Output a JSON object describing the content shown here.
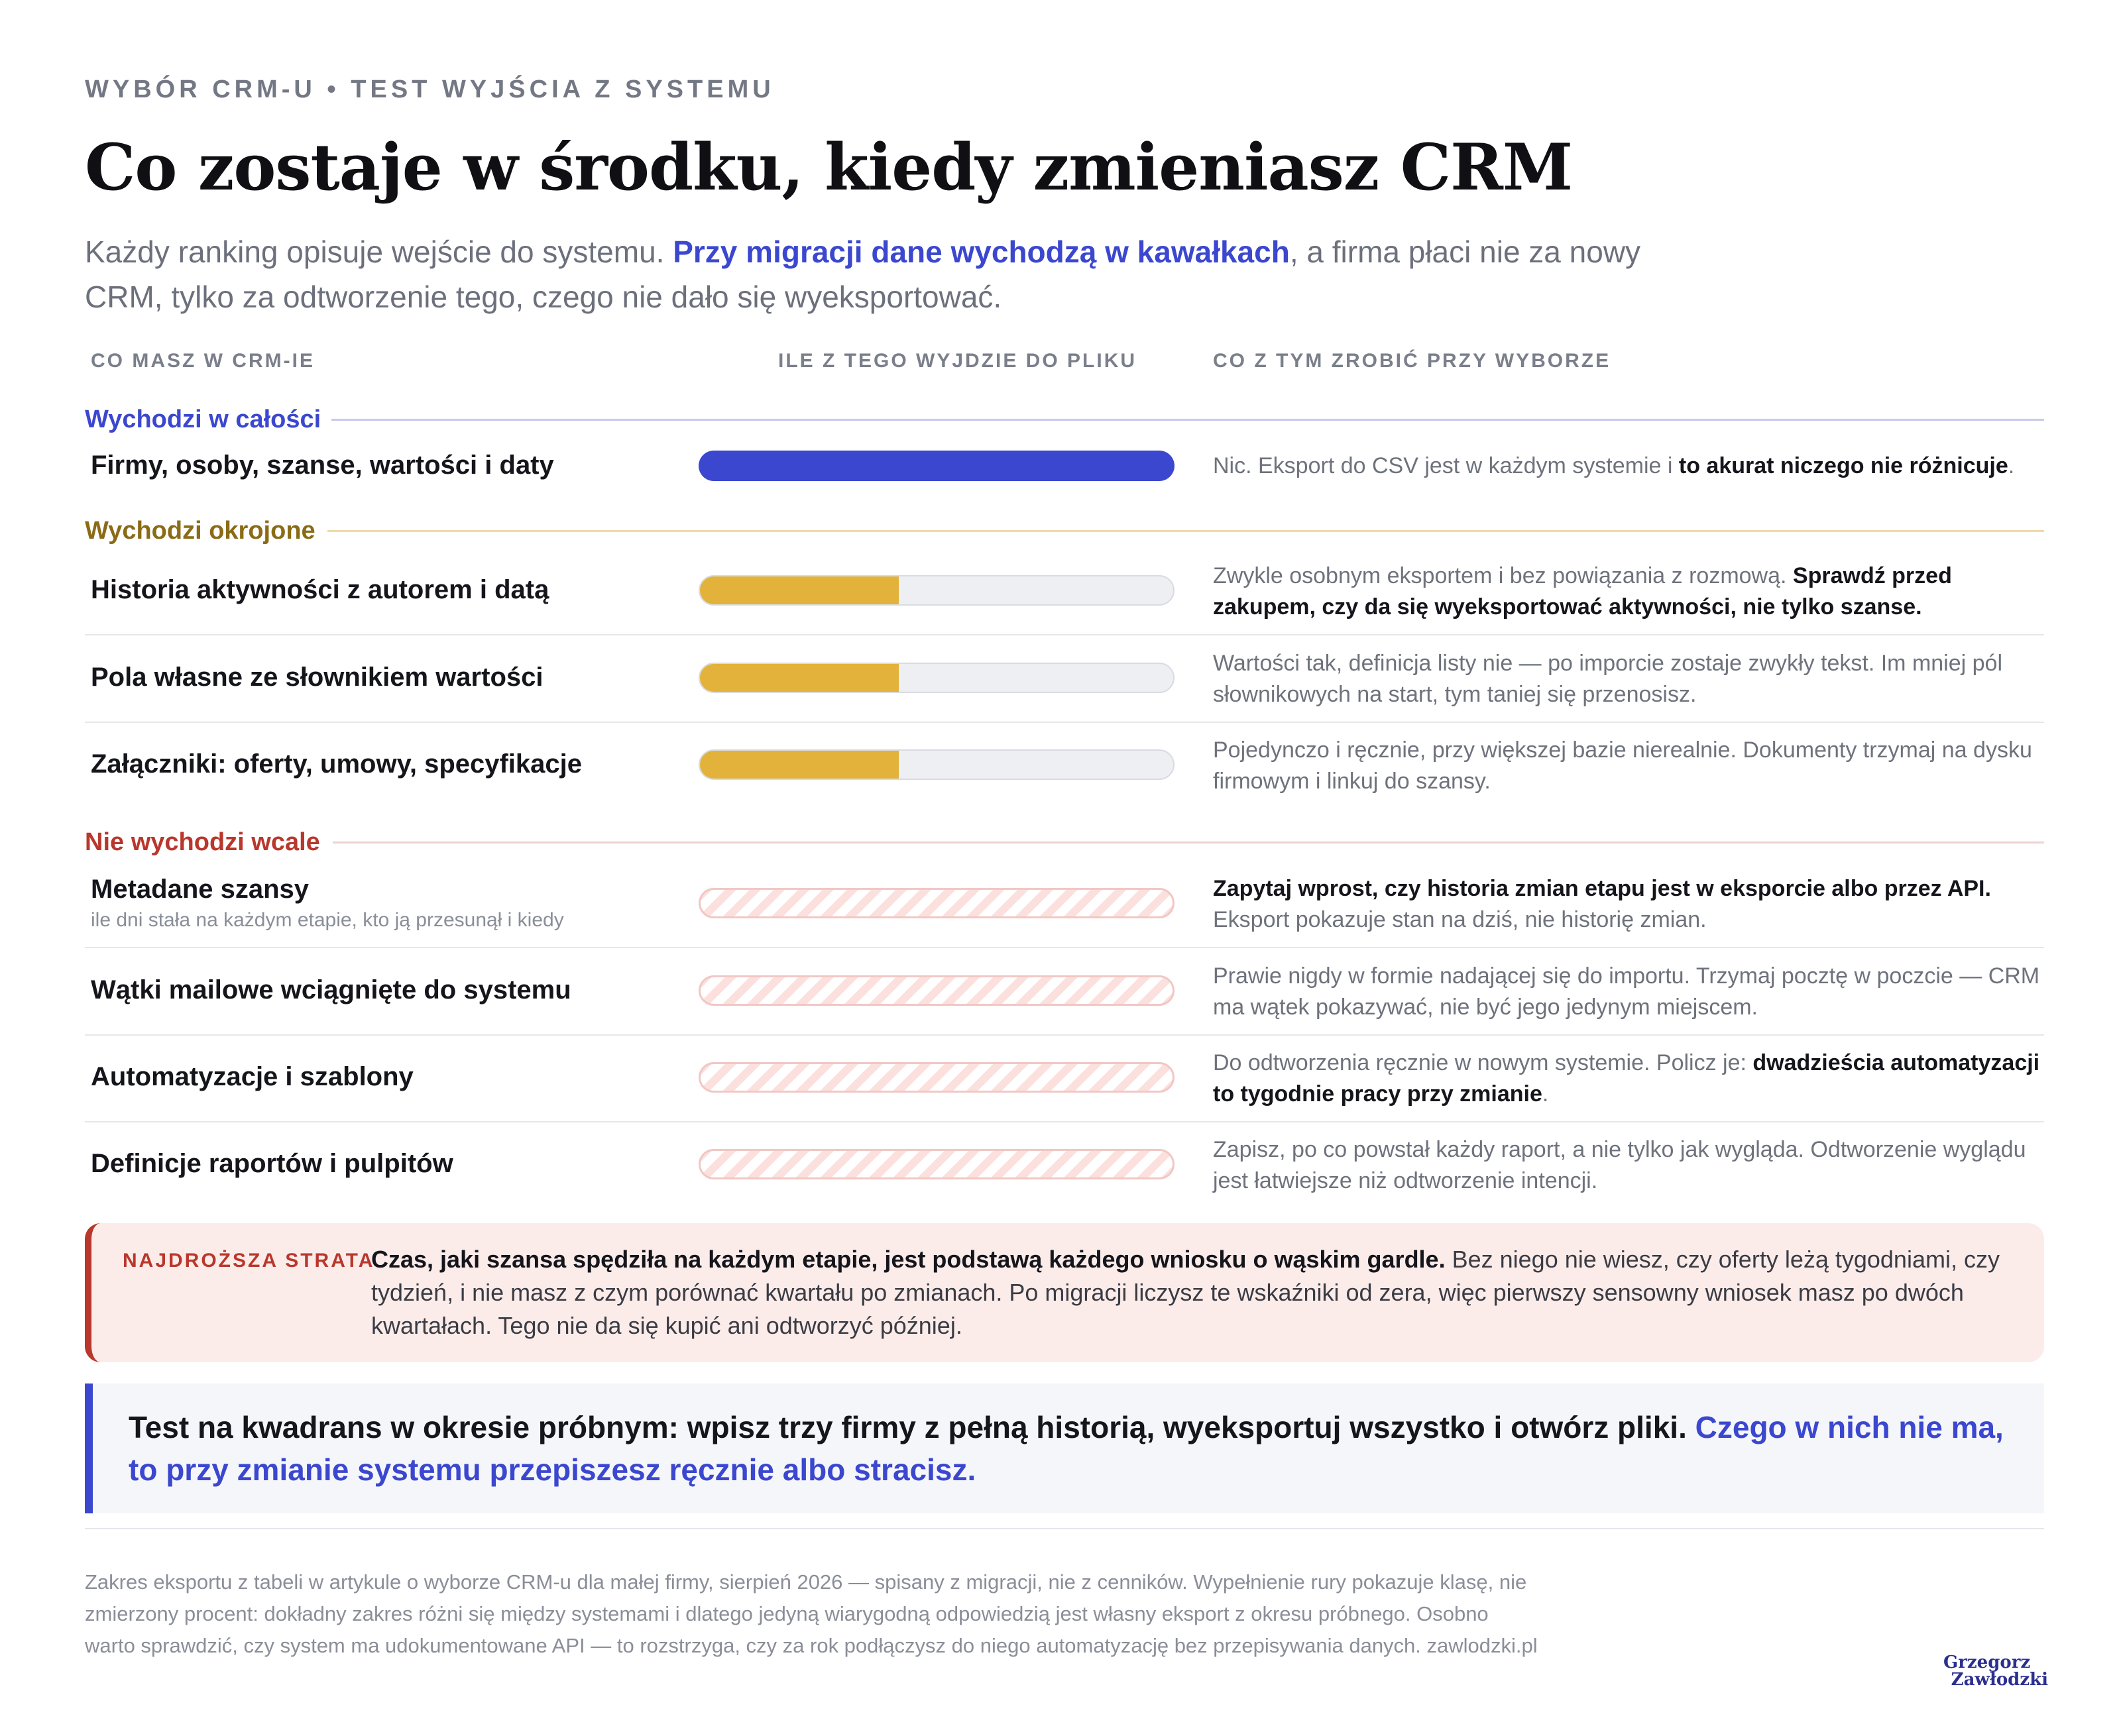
{
  "header": {
    "eyebrow": "WYBÓR CRM-U • TEST WYJŚCIA Z SYSTEMU",
    "title": "Co zostaje w środku, kiedy zmieniasz CRM",
    "lede_plain_1": "Każdy ranking opisuje wejście do systemu. ",
    "lede_highlight": "Przy migracji dane wychodzą w kawałkach",
    "lede_plain_2": ", a firma płaci nie za nowy CRM, tylko za odtworzenie tego, czego nie dało się wyeksportować."
  },
  "columns": {
    "c1": "CO MASZ W CRM-IE",
    "c2": "ILE Z TEGO WYJDZIE DO PLIKU",
    "c3": "CO Z TYM ZROBIĆ PRZY WYBORZE"
  },
  "groups": {
    "full": {
      "label": "Wychodzi w całości",
      "color": "#3b47cf",
      "line_color": "#c6c9ee"
    },
    "partial": {
      "label": "Wychodzi okrojone",
      "color": "#8a6b16",
      "line_color": "#f0d9a8"
    },
    "none": {
      "label": "Nie wychodzi wcale",
      "color": "#b9372c",
      "line_color": "#ecd3d0"
    }
  },
  "rows": {
    "r1": {
      "label": "Firmy, osoby, szanse, wartości i daty",
      "fill": 1.0,
      "note_plain": "Nic. Eksport do CSV jest w każdym systemie i ",
      "note_bold": "to akurat niczego nie różnicuje",
      "note_end": "."
    },
    "r2": {
      "label": "Historia aktywności z autorem i datą",
      "fill": 0.42,
      "note_plain": "Zwykle osobnym eksportem i bez powiązania z rozmową. ",
      "note_bold": "Sprawdź przed zakupem, czy da się wyeksportować aktywności, nie tylko szanse."
    },
    "r3": {
      "label": "Pola własne ze słownikiem wartości",
      "fill": 0.42,
      "note_plain": "Wartości tak, definicja listy nie — po imporcie zostaje zwykły tekst. Im mniej pól słownikowych na start, tym taniej się przenosisz."
    },
    "r4": {
      "label": "Załączniki: oferty, umowy, specyfikacje",
      "fill": 0.42,
      "note_plain": "Pojedynczo i ręcznie, przy większej bazie nierealnie. Dokumenty trzymaj na dysku firmowym i linkuj do szansy."
    },
    "r5": {
      "label": "Metadane szansy",
      "sub": "ile dni stała na każdym etapie, kto ją przesunął i kiedy",
      "fill": 0,
      "note_bold": "Zapytaj wprost, czy historia zmian etapu jest w eksporcie albo przez API.",
      "note_plain": "Eksport pokazuje stan na dziś, nie historię zmian."
    },
    "r6": {
      "label": "Wątki mailowe wciągnięte do systemu",
      "fill": 0,
      "note_plain": "Prawie nigdy w formie nadającej się do importu. Trzymaj pocztę w poczcie — CRM ma wątek pokazywać, nie być jego jedynym miejscem."
    },
    "r7": {
      "label": "Automatyzacje i szablony",
      "fill": 0,
      "note_plain": "Do odtworzenia ręcznie w nowym systemie. Policz je: ",
      "note_bold": "dwadzieścia automatyzacji to tygodnie pracy przy zmianie",
      "note_end": "."
    },
    "r8": {
      "label": "Definicje raportów i pulpitów",
      "fill": 0,
      "note_plain": "Zapisz, po co powstał każdy raport, a nie tylko jak wygląda. Odtworzenie wyglądu jest łatwiejsze niż odtworzenie intencji."
    }
  },
  "alert": {
    "label": "NAJDROŻSZA STRATA",
    "bold": "Czas, jaki szansa spędziła na każdym etapie, jest podstawą każdego wniosku o wąskim gardle.",
    "plain": " Bez niego nie wiesz, czy oferty leżą tygodniami, czy tydzień, i nie masz z czym porównać kwartału po zmianach. Po migracji liczysz te wskaźniki od zera, więc pierwszy sensowny wniosek masz po dwóch kwartałach. Tego nie da się kupić ani odtworzyć później."
  },
  "callout": {
    "plain": "Test na kwadrans w okresie próbnym: wpisz trzy firmy z pełną historią, wyeksportuj wszystko i otwórz pliki. ",
    "highlight": "Czego w nich nie ma, to przy zmianie systemu przepiszesz ręcznie albo stracisz."
  },
  "footnote": "Zakres eksportu z tabeli w artykule o wyborze CRM-u dla małej firmy, sierpień 2026 — spisany z migracji, nie z cenników. Wypełnienie rury pokazuje klasę, nie zmierzony procent: dokładny zakres różni się między systemami i dlatego jedyną wiarygodną odpowiedzią jest własny eksport z okresu próbnego. Osobno warto sprawdzić, czy system ma udokumentowane API — to rozstrzyga, czy za rok podłączysz do niego automatyzację bez przepisywania danych. zawlodzki.pl",
  "logo": {
    "line1": "Grzegorz",
    "line2": "Zawłodzki"
  }
}
